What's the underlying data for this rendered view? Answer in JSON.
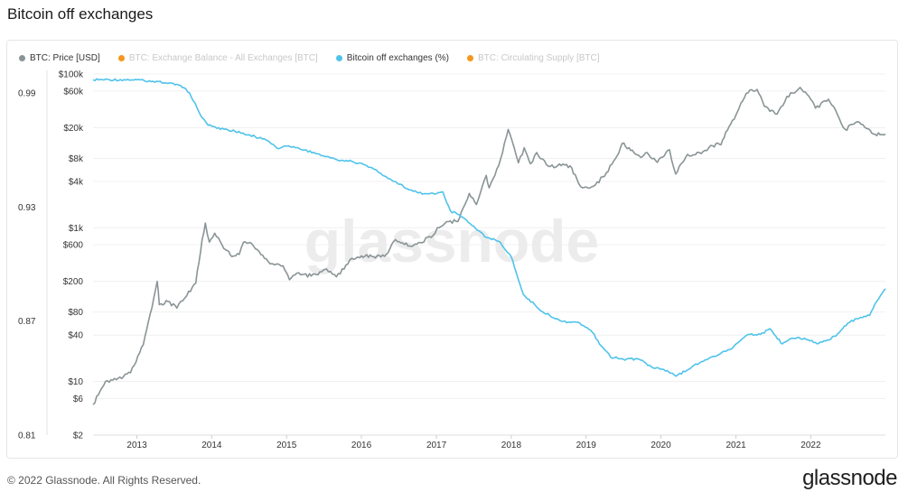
{
  "page": {
    "title": "Bitcoin off exchanges",
    "copyright": "© 2022 Glassnode. All Rights Reserved.",
    "brand": "glassnode",
    "watermark": "glassnode"
  },
  "legend": [
    {
      "label": "BTC: Price [USD]",
      "color": "#8a9496",
      "enabled": true
    },
    {
      "label": "BTC: Exchange Balance - All Exchanges [BTC]",
      "color": "#f5961e",
      "enabled": false
    },
    {
      "label": "Bitcoin off exchanges (%)",
      "color": "#4fc3ea",
      "enabled": true
    },
    {
      "label": "BTC: Circulating Supply [BTC]",
      "color": "#f5961e",
      "enabled": false
    }
  ],
  "chart_data": {
    "type": "line",
    "x_ticks": [
      "2013",
      "2014",
      "2015",
      "2016",
      "2017",
      "2018",
      "2019",
      "2020",
      "2021",
      "2022"
    ],
    "x_range": [
      "2012-06-01",
      "2022-12-31"
    ],
    "left_axis": {
      "ticks": [
        "0.99",
        "0.93",
        "0.87",
        "0.81"
      ],
      "tick_values": [
        0.99,
        0.93,
        0.87,
        0.81
      ],
      "range": [
        0.81,
        1.0
      ]
    },
    "right_axis": {
      "scale": "log",
      "ticks": [
        "$100k",
        "$60k",
        "$20k",
        "$8k",
        "$4k",
        "$1k",
        "$600",
        "$200",
        "$80",
        "$40",
        "$10",
        "$6",
        "$2"
      ],
      "tick_values": [
        100000,
        60000,
        20000,
        8000,
        4000,
        1000,
        600,
        200,
        80,
        40,
        10,
        6,
        2
      ],
      "range": [
        2,
        100000
      ]
    },
    "grid": true,
    "series": [
      {
        "name": "BTC: Price [USD]",
        "color": "#8a9496",
        "axis": "right",
        "points": [
          [
            "2012-06-01",
            5
          ],
          [
            "2012-08-01",
            10
          ],
          [
            "2012-10-01",
            11
          ],
          [
            "2012-12-01",
            13
          ],
          [
            "2013-02-01",
            30
          ],
          [
            "2013-03-15",
            90
          ],
          [
            "2013-04-10",
            200
          ],
          [
            "2013-04-20",
            100
          ],
          [
            "2013-06-01",
            110
          ],
          [
            "2013-07-15",
            90
          ],
          [
            "2013-09-01",
            130
          ],
          [
            "2013-10-15",
            190
          ],
          [
            "2013-11-15",
            700
          ],
          [
            "2013-12-01",
            1150
          ],
          [
            "2013-12-20",
            650
          ],
          [
            "2014-01-15",
            850
          ],
          [
            "2014-02-20",
            600
          ],
          [
            "2014-04-10",
            420
          ],
          [
            "2014-05-15",
            450
          ],
          [
            "2014-06-05",
            650
          ],
          [
            "2014-07-15",
            620
          ],
          [
            "2014-09-15",
            400
          ],
          [
            "2014-11-01",
            330
          ],
          [
            "2014-12-15",
            320
          ],
          [
            "2015-01-15",
            210
          ],
          [
            "2015-03-01",
            260
          ],
          [
            "2015-05-01",
            235
          ],
          [
            "2015-07-15",
            290
          ],
          [
            "2015-09-01",
            230
          ],
          [
            "2015-11-05",
            380
          ],
          [
            "2016-01-01",
            430
          ],
          [
            "2016-03-01",
            420
          ],
          [
            "2016-05-01",
            450
          ],
          [
            "2016-06-15",
            700
          ],
          [
            "2016-08-15",
            580
          ],
          [
            "2016-10-15",
            640
          ],
          [
            "2016-12-15",
            790
          ],
          [
            "2017-01-05",
            1000
          ],
          [
            "2017-03-01",
            1200
          ],
          [
            "2017-04-15",
            1200
          ],
          [
            "2017-06-10",
            2800
          ],
          [
            "2017-07-15",
            2000
          ],
          [
            "2017-09-01",
            4800
          ],
          [
            "2017-09-15",
            3300
          ],
          [
            "2017-11-01",
            6500
          ],
          [
            "2017-12-17",
            19000
          ],
          [
            "2018-01-15",
            11000
          ],
          [
            "2018-02-05",
            7000
          ],
          [
            "2018-03-05",
            11000
          ],
          [
            "2018-04-05",
            6800
          ],
          [
            "2018-05-05",
            9500
          ],
          [
            "2018-07-01",
            6300
          ],
          [
            "2018-08-15",
            6400
          ],
          [
            "2018-10-15",
            6400
          ],
          [
            "2018-11-25",
            3800
          ],
          [
            "2018-12-15",
            3300
          ],
          [
            "2019-02-15",
            3600
          ],
          [
            "2019-04-10",
            5200
          ],
          [
            "2019-05-25",
            8000
          ],
          [
            "2019-06-26",
            12500
          ],
          [
            "2019-08-15",
            10200
          ],
          [
            "2019-09-25",
            8200
          ],
          [
            "2019-10-26",
            9500
          ],
          [
            "2019-12-15",
            7100
          ],
          [
            "2020-02-12",
            10300
          ],
          [
            "2020-03-13",
            5000
          ],
          [
            "2020-05-10",
            9000
          ],
          [
            "2020-07-15",
            9200
          ],
          [
            "2020-09-01",
            11800
          ],
          [
            "2020-10-20",
            12000
          ],
          [
            "2020-11-20",
            18500
          ],
          [
            "2020-12-31",
            29000
          ],
          [
            "2021-02-20",
            56000
          ],
          [
            "2021-04-14",
            63000
          ],
          [
            "2021-05-20",
            38000
          ],
          [
            "2021-07-20",
            30000
          ],
          [
            "2021-09-06",
            51000
          ],
          [
            "2021-11-10",
            67000
          ],
          [
            "2021-12-31",
            47000
          ],
          [
            "2022-01-24",
            36000
          ],
          [
            "2022-03-28",
            47000
          ],
          [
            "2022-05-10",
            30000
          ],
          [
            "2022-06-18",
            19000
          ],
          [
            "2022-08-15",
            24000
          ],
          [
            "2022-10-01",
            19500
          ],
          [
            "2022-11-10",
            16500
          ],
          [
            "2022-12-31",
            16600
          ]
        ]
      },
      {
        "name": "Bitcoin off exchanges (%)",
        "color": "#4fc3ea",
        "axis": "left",
        "points": [
          [
            "2012-06-01",
            0.997
          ],
          [
            "2013-01-01",
            0.997
          ],
          [
            "2013-04-15",
            0.996
          ],
          [
            "2013-06-01",
            0.995
          ],
          [
            "2013-08-01",
            0.994
          ],
          [
            "2013-09-15",
            0.99
          ],
          [
            "2013-11-15",
            0.977
          ],
          [
            "2013-12-15",
            0.973
          ],
          [
            "2014-03-01",
            0.971
          ],
          [
            "2014-06-01",
            0.969
          ],
          [
            "2014-08-01",
            0.967
          ],
          [
            "2014-10-01",
            0.965
          ],
          [
            "2014-11-15",
            0.961
          ],
          [
            "2015-01-01",
            0.962
          ],
          [
            "2015-03-01",
            0.961
          ],
          [
            "2015-06-01",
            0.958
          ],
          [
            "2015-09-01",
            0.955
          ],
          [
            "2015-11-15",
            0.954
          ],
          [
            "2016-01-01",
            0.953
          ],
          [
            "2016-03-01",
            0.95
          ],
          [
            "2016-05-01",
            0.946
          ],
          [
            "2016-07-01",
            0.942
          ],
          [
            "2016-09-01",
            0.939
          ],
          [
            "2016-11-01",
            0.937
          ],
          [
            "2017-01-01",
            0.937
          ],
          [
            "2017-02-01",
            0.938
          ],
          [
            "2017-03-10",
            0.928
          ],
          [
            "2017-05-01",
            0.925
          ],
          [
            "2017-07-01",
            0.92
          ],
          [
            "2017-09-01",
            0.914
          ],
          [
            "2017-11-01",
            0.912
          ],
          [
            "2017-12-31",
            0.904
          ],
          [
            "2018-03-01",
            0.884
          ],
          [
            "2018-06-01",
            0.875
          ],
          [
            "2018-09-01",
            0.87
          ],
          [
            "2018-12-01",
            0.869
          ],
          [
            "2019-02-01",
            0.864
          ],
          [
            "2019-03-15",
            0.857
          ],
          [
            "2019-05-01",
            0.851
          ],
          [
            "2019-07-01",
            0.85
          ],
          [
            "2019-09-15",
            0.85
          ],
          [
            "2019-11-15",
            0.846
          ],
          [
            "2020-02-01",
            0.844
          ],
          [
            "2020-03-15",
            0.841
          ],
          [
            "2020-06-01",
            0.846
          ],
          [
            "2020-09-01",
            0.851
          ],
          [
            "2020-12-01",
            0.855
          ],
          [
            "2021-01-15",
            0.859
          ],
          [
            "2021-03-01",
            0.863
          ],
          [
            "2021-05-01",
            0.863
          ],
          [
            "2021-06-15",
            0.866
          ],
          [
            "2021-07-15",
            0.862
          ],
          [
            "2021-08-15",
            0.858
          ],
          [
            "2021-10-01",
            0.861
          ],
          [
            "2021-12-01",
            0.861
          ],
          [
            "2022-02-01",
            0.858
          ],
          [
            "2022-04-01",
            0.86
          ],
          [
            "2022-05-20",
            0.864
          ],
          [
            "2022-07-01",
            0.869
          ],
          [
            "2022-09-01",
            0.872
          ],
          [
            "2022-10-15",
            0.873
          ],
          [
            "2022-11-10",
            0.879
          ],
          [
            "2022-12-31",
            0.887
          ]
        ]
      }
    ]
  }
}
